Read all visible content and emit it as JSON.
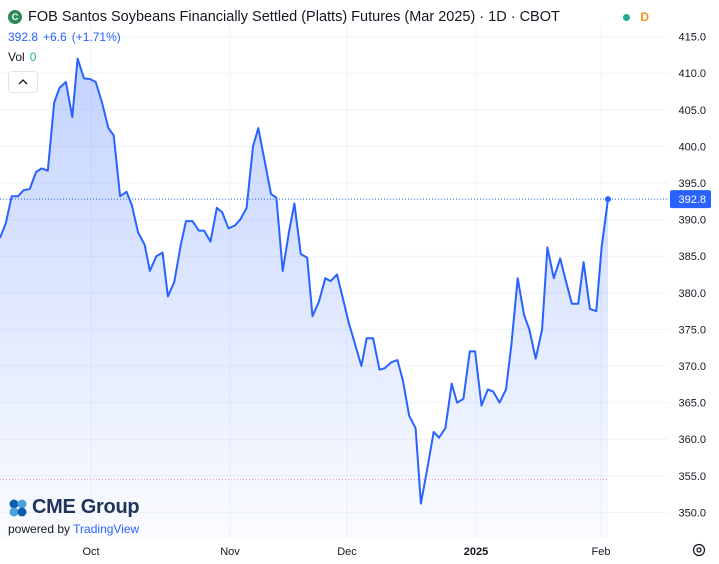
{
  "header": {
    "logo_letter": "C",
    "title": "FOB Santos Soybeans Financially Settled (Platts) Futures (Mar 2025) · 1D · CBOT",
    "delay_badge": "D"
  },
  "quote": {
    "price": "392.8",
    "change": "+6.6",
    "change_pct": "(+1.71%)"
  },
  "volume": {
    "label": "Vol",
    "value": "0"
  },
  "branding": {
    "cme": "CME Group",
    "powered_by": "powered by",
    "tradingview": "TradingView"
  },
  "colors": {
    "line": "#2962ff",
    "price_label_bg": "#2962ff",
    "live_dot": "#22ab94",
    "delay": "#f7931a",
    "dotted_low": "#e8a0a0"
  },
  "chart_data": {
    "type": "area",
    "x_tick_labels": [
      "Oct",
      "Nov",
      "Dec",
      "2025",
      "Feb"
    ],
    "y_ticks": [
      350,
      355,
      360,
      365,
      370,
      375,
      380,
      385,
      390,
      395,
      400,
      405,
      410,
      415
    ],
    "y_tick_labels": [
      "350.0",
      "355.0",
      "360.0",
      "365.0",
      "370.0",
      "375.0",
      "380.0",
      "385.0",
      "390.0",
      "395.0",
      "400.0",
      "405.0",
      "410.0",
      "415.0"
    ],
    "ylim": [
      346.5,
      417
    ],
    "last_value": 392.8,
    "last_label": "392.8",
    "reference_low": 354.5,
    "series": [
      {
        "values": [
          387.5,
          389.5,
          393.2,
          393.2,
          394.0,
          394.2,
          396.5,
          397.0,
          396.7,
          406.0,
          408.0,
          408.8,
          404.0,
          412.0,
          409.3,
          409.2,
          408.8,
          406.0,
          402.5,
          401.5,
          393.2,
          393.8,
          392.0,
          388.2,
          386.6,
          383.0,
          385.0,
          385.5,
          379.5,
          381.5,
          386.5,
          389.8,
          389.8,
          388.5,
          388.5,
          387.0,
          391.6,
          391.0,
          388.8,
          389.2,
          390.0,
          391.6,
          400.0,
          402.5,
          398.0,
          393.5,
          393.0,
          383.0,
          388.4,
          392.2,
          385.3,
          384.8,
          376.8,
          378.8,
          382.0,
          381.6,
          382.5,
          379.0,
          376.0,
          373.0,
          370.0,
          373.8,
          373.8,
          369.5,
          369.7,
          370.5,
          370.8,
          368.0,
          363.2,
          361.5,
          351.2,
          356.0,
          361.0,
          360.2,
          361.5,
          367.6,
          365.0,
          365.5,
          372.0,
          372.0,
          364.6,
          366.8,
          366.5,
          365.0,
          366.8,
          372.8,
          382.0,
          377.0,
          375.0,
          371.0,
          375.0,
          386.2,
          382.0,
          384.7,
          381.8,
          378.5,
          378.5,
          384.2,
          377.8,
          377.5,
          386.2,
          392.8
        ],
        "x_frac": [
          0.0,
          0.0055,
          0.011,
          0.017,
          0.022,
          0.028,
          0.034,
          0.039,
          0.045,
          0.051,
          0.056,
          0.062,
          0.068,
          0.073,
          0.079,
          0.085,
          0.09,
          0.096,
          0.102,
          0.107,
          0.113,
          0.119,
          0.124,
          0.13,
          0.136,
          0.141,
          0.147,
          0.153,
          0.158,
          0.164,
          0.17,
          0.175,
          0.181,
          0.187,
          0.192,
          0.198,
          0.204,
          0.209,
          0.215,
          0.221,
          0.226,
          0.232,
          0.238,
          0.243,
          0.249,
          0.255,
          0.26,
          0.266,
          0.272,
          0.277,
          0.283,
          0.289,
          0.294,
          0.3,
          0.306,
          0.311,
          0.317,
          0.323,
          0.328,
          0.334,
          0.34,
          0.345,
          0.351,
          0.357,
          0.362,
          0.368,
          0.374,
          0.379,
          0.385,
          0.391,
          0.396,
          0.402,
          0.408,
          0.413,
          0.419,
          0.425,
          0.43,
          0.436,
          0.442,
          0.447,
          0.453,
          0.459,
          0.464,
          0.47,
          0.476,
          0.481,
          0.487,
          0.493,
          0.498,
          0.504,
          0.51,
          0.515,
          0.521,
          0.527,
          0.532,
          0.538,
          0.544,
          0.549,
          0.555,
          0.561,
          0.566,
          0.572
        ]
      }
    ]
  }
}
